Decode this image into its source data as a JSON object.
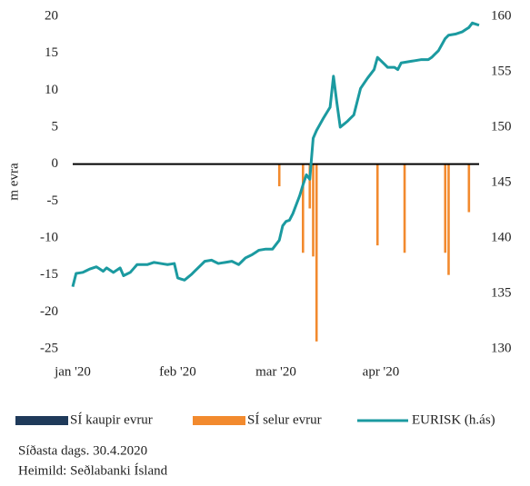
{
  "chart_data": {
    "type": "bar",
    "y_label": "m evra",
    "categories": [
      "jan '20",
      null,
      null,
      null,
      null,
      null,
      null,
      null,
      null,
      null,
      null,
      null,
      null,
      null,
      null,
      null,
      null,
      null,
      null,
      null,
      null,
      null,
      null,
      null,
      null,
      null,
      null,
      null,
      null,
      null,
      null,
      "feb '20",
      null,
      null,
      null,
      null,
      null,
      null,
      null,
      null,
      null,
      null,
      null,
      null,
      null,
      null,
      null,
      null,
      null,
      null,
      null,
      null,
      null,
      null,
      null,
      null,
      null,
      null,
      null,
      null,
      "mar '20",
      null,
      null,
      null,
      null,
      null,
      null,
      null,
      null,
      null,
      null,
      null,
      null,
      null,
      null,
      null,
      null,
      null,
      null,
      null,
      null,
      null,
      null,
      null,
      null,
      null,
      null,
      null,
      null,
      null,
      null,
      "apr '20",
      null,
      null,
      null,
      null,
      null,
      null,
      null,
      null,
      null,
      null,
      null,
      null,
      null,
      null,
      null,
      null,
      null,
      null,
      null,
      null,
      null,
      null,
      null,
      null,
      null,
      null,
      null,
      null,
      null
    ],
    "series": [
      {
        "name": "SÍ kaupir evrur",
        "type": "bar",
        "color": "#1f3a5a",
        "values": [
          null,
          null,
          null,
          null,
          null,
          null,
          null,
          null,
          null,
          null,
          null,
          null,
          null,
          null,
          null,
          null,
          null,
          null,
          null,
          null,
          null,
          null,
          null,
          null,
          null,
          null,
          null,
          null,
          null,
          null,
          null,
          null,
          null,
          null,
          null,
          null,
          null,
          null,
          null,
          null,
          null,
          null,
          null,
          null,
          null,
          null,
          null,
          null,
          null,
          null,
          null,
          null,
          null,
          null,
          null,
          null,
          null,
          null,
          null,
          null,
          null,
          null,
          null,
          null,
          null,
          null,
          null,
          null,
          null,
          null,
          null,
          null,
          null,
          null,
          null,
          null,
          null,
          null,
          null,
          null,
          null,
          null,
          null,
          null,
          null,
          null,
          null,
          null,
          null,
          null,
          null,
          null,
          null,
          null,
          null,
          null,
          null,
          null,
          null,
          null,
          null,
          null,
          null,
          null,
          null,
          null,
          null,
          null,
          null,
          null,
          null,
          null,
          null,
          null,
          null,
          null,
          null,
          null,
          null,
          null,
          null
        ]
      },
      {
        "name": "SÍ selur evrur",
        "type": "bar",
        "color": "#f28a2e",
        "values": [
          null,
          null,
          null,
          null,
          null,
          null,
          null,
          null,
          null,
          null,
          null,
          null,
          null,
          null,
          null,
          null,
          null,
          null,
          null,
          null,
          null,
          null,
          null,
          null,
          null,
          null,
          null,
          null,
          null,
          null,
          null,
          null,
          null,
          null,
          null,
          null,
          null,
          null,
          null,
          null,
          null,
          null,
          null,
          null,
          null,
          null,
          null,
          null,
          null,
          null,
          null,
          null,
          null,
          null,
          null,
          null,
          null,
          null,
          null,
          null,
          null,
          -3,
          null,
          null,
          null,
          null,
          null,
          null,
          -12,
          null,
          -6,
          -12.5,
          -24,
          null,
          null,
          null,
          null,
          null,
          null,
          null,
          null,
          null,
          null,
          null,
          null,
          null,
          null,
          null,
          null,
          null,
          -11,
          null,
          null,
          null,
          null,
          null,
          null,
          null,
          -12,
          null,
          null,
          null,
          null,
          null,
          null,
          null,
          null,
          null,
          null,
          null,
          -12,
          -15,
          null,
          null,
          null,
          null,
          null,
          -6.5,
          null,
          null,
          null
        ]
      },
      {
        "name": "EURISK (h.ás)",
        "type": "line",
        "axis": "y2",
        "color": "#1b9aa0",
        "values": [
          135.6,
          136.8,
          136.85,
          136.9,
          137.05,
          137.2,
          137.3,
          137.4,
          137.2,
          137.0,
          137.3,
          137.1,
          136.9,
          137.1,
          137.3,
          136.6,
          136.75,
          136.9,
          137.25,
          137.6,
          137.6,
          137.6,
          137.6,
          137.7,
          137.8,
          137.75,
          137.7,
          137.65,
          137.6,
          137.65,
          137.7,
          136.4,
          136.3,
          136.2,
          136.45,
          136.7,
          137.0,
          137.3,
          137.6,
          137.9,
          137.95,
          138.0,
          137.85,
          137.7,
          137.75,
          137.8,
          137.85,
          137.9,
          137.75,
          137.6,
          137.9,
          138.2,
          138.35,
          138.5,
          138.7,
          138.9,
          138.95,
          139.0,
          139.0,
          139.0,
          139.4,
          139.8,
          141.1,
          141.5,
          141.6,
          142.2,
          143.0,
          143.8,
          144.8,
          145.7,
          145.3,
          149.0,
          149.7,
          150.25,
          150.8,
          151.3,
          151.8,
          154.6,
          152.2,
          150.0,
          150.25,
          150.5,
          150.8,
          151.1,
          152.3,
          153.5,
          153.95,
          154.4,
          154.8,
          155.2,
          156.3,
          156.0,
          155.7,
          155.4,
          155.4,
          155.4,
          155.2,
          155.8,
          155.85,
          155.9,
          155.95,
          156.0,
          156.05,
          156.1,
          156.1,
          156.1,
          156.3,
          156.6,
          156.9,
          157.45,
          158.0,
          158.3,
          158.35,
          158.4,
          158.5,
          158.6,
          158.8,
          159.0,
          159.4,
          159.3,
          159.2
        ]
      }
    ],
    "ylim": [
      -25,
      20
    ],
    "yticks": [
      20,
      15,
      10,
      5,
      0,
      -5,
      -10,
      -15,
      -20,
      -25
    ],
    "y2lim": [
      130,
      160
    ],
    "y2ticks": [
      160,
      155,
      150,
      145,
      140,
      135,
      130
    ],
    "notes": [
      "Síðasta dags. 30.4.2020",
      "Heimild: Seðlabanki Ísland"
    ]
  }
}
